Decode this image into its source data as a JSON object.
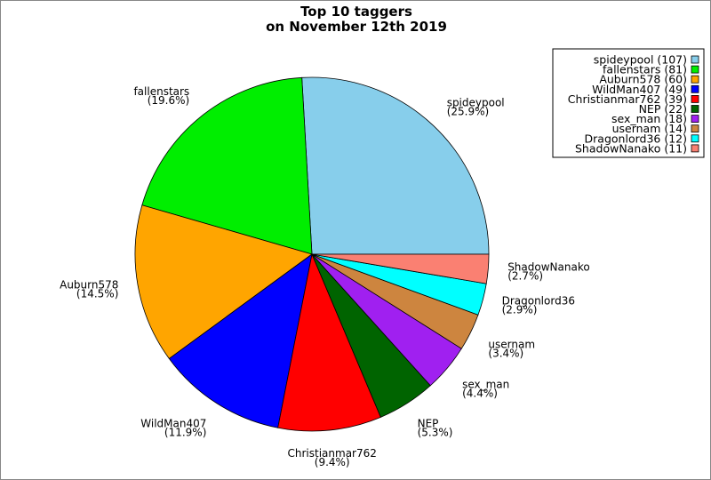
{
  "chart_data": {
    "type": "pie",
    "title_lines": [
      "Top 10 taggers",
      "on November 12th 2019"
    ],
    "slices": [
      {
        "name": "spideypool",
        "value": 107,
        "percent": "25.9%",
        "color": "#87ceeb"
      },
      {
        "name": "fallenstars",
        "value": 81,
        "percent": "19.6%",
        "color": "#00ee00"
      },
      {
        "name": "Auburn578",
        "value": 60,
        "percent": "14.5%",
        "color": "#ffa500"
      },
      {
        "name": "WildMan407",
        "value": 49,
        "percent": "11.9%",
        "color": "#0000ff"
      },
      {
        "name": "Christianmar762",
        "value": 39,
        "percent": "9.4%",
        "color": "#ff0000"
      },
      {
        "name": "NEP",
        "value": 22,
        "percent": "5.3%",
        "color": "#006400"
      },
      {
        "name": "sex_man",
        "value": 18,
        "percent": "4.4%",
        "color": "#a020f0"
      },
      {
        "name": "usernam",
        "value": 14,
        "percent": "3.4%",
        "color": "#cd853f"
      },
      {
        "name": "Dragonlord36",
        "value": 12,
        "percent": "2.9%",
        "color": "#00ffff"
      },
      {
        "name": "ShadowNanako",
        "value": 11,
        "percent": "2.7%",
        "color": "#fa8072"
      }
    ],
    "legend": [
      "spideypool (107)",
      "fallenstars (81)",
      "Auburn578 (60)",
      "WildMan407 (49)",
      "Christianmar762 (39)",
      "NEP (22)",
      "sex_man (18)",
      "usernam (14)",
      "Dragonlord36 (12)",
      "ShadowNanako (11)"
    ],
    "legend_position": "top-right"
  }
}
